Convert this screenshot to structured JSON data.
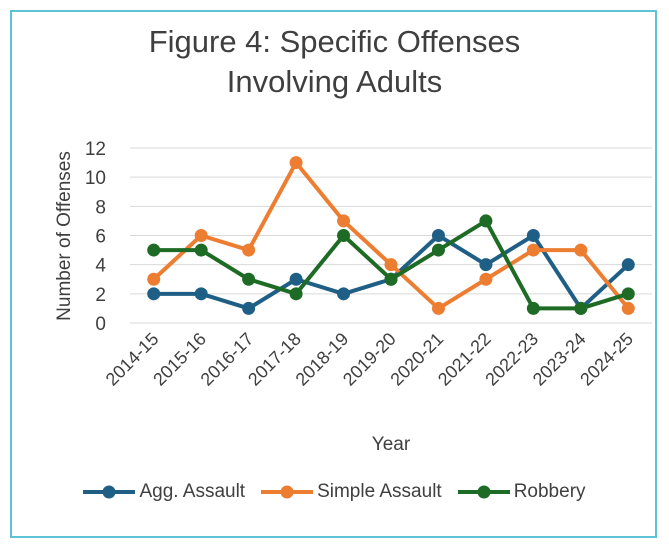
{
  "chart_data": {
    "type": "line",
    "title": "Figure 4: Specific Offenses Involving Adults",
    "title_lines": [
      "Figure 4: Specific Offenses",
      "Involving Adults"
    ],
    "xlabel": "Year",
    "ylabel": "Number of Offenses",
    "ylim": [
      0,
      12
    ],
    "yticks": [
      0,
      2,
      4,
      6,
      8,
      10,
      12
    ],
    "grid": true,
    "legend_position": "bottom",
    "categories": [
      "2014-15",
      "2015-16",
      "2016-17",
      "2017-18",
      "2018-19",
      "2019-20",
      "2020-21",
      "2021-22",
      "2022-23",
      "2023-24",
      "2024-25"
    ],
    "series": [
      {
        "name": "Agg. Assault",
        "color": "#1f5f86",
        "values": [
          2,
          2,
          1,
          3,
          2,
          3,
          6,
          4,
          6,
          1,
          4
        ]
      },
      {
        "name": "Simple Assault",
        "color": "#ed7d31",
        "values": [
          3,
          6,
          5,
          11,
          7,
          4,
          1,
          3,
          5,
          5,
          1
        ]
      },
      {
        "name": "Robbery",
        "color": "#1d6b24",
        "values": [
          5,
          5,
          3,
          2,
          6,
          3,
          5,
          7,
          1,
          1,
          2
        ]
      }
    ]
  }
}
